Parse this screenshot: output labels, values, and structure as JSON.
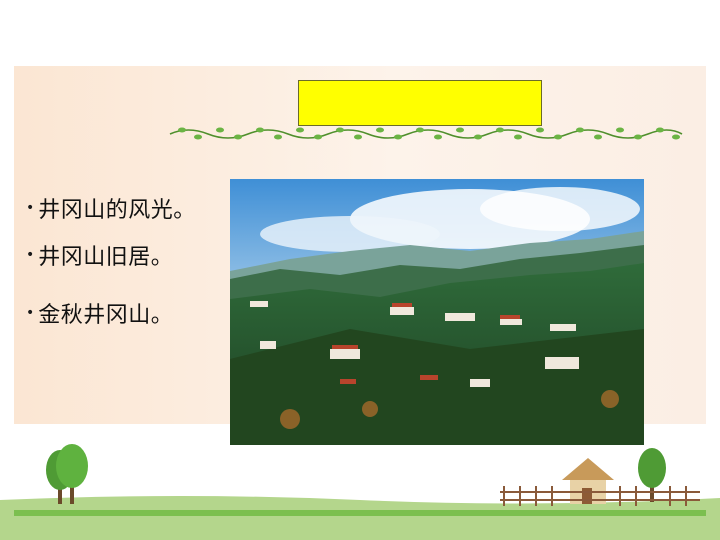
{
  "slide": {
    "title": "",
    "bullets": [
      {
        "text": "井冈山的风光。"
      },
      {
        "text": "井冈山旧居。"
      },
      {
        "text": "金秋井冈山。"
      }
    ]
  },
  "colors": {
    "title_box": "#ffff00",
    "panel": "#fbeee4",
    "vine_green": "#5aa33a"
  },
  "icons": [
    "vine-divider-icon",
    "tree-icon",
    "cottage-icon",
    "fence-icon"
  ]
}
